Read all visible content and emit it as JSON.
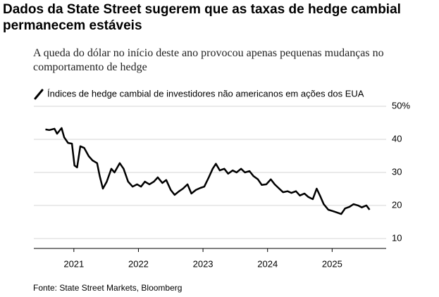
{
  "chart_data": {
    "type": "line",
    "title": "Dados da State Street sugerem que as taxas de hedge cambial permanecem estáveis",
    "subtitle": "A queda do dólar no início deste ano provocou apenas pequenas mudanças no comportamento de hedge",
    "source": "Fonte: State Street Markets, Bloomberg",
    "x": [
      2020.56,
      2020.62,
      2020.7,
      2020.74,
      2020.81,
      2020.85,
      2020.91,
      2020.97,
      2021.01,
      2021.05,
      2021.1,
      2021.16,
      2021.23,
      2021.29,
      2021.36,
      2021.4,
      2021.45,
      2021.51,
      2021.58,
      2021.63,
      2021.71,
      2021.77,
      2021.84,
      2021.91,
      2021.98,
      2022.04,
      2022.1,
      2022.17,
      2022.24,
      2022.3,
      2022.37,
      2022.43,
      2022.5,
      2022.56,
      2022.63,
      2022.69,
      2022.76,
      2022.82,
      2022.89,
      2022.96,
      2023.02,
      2023.09,
      2023.15,
      2023.2,
      2023.26,
      2023.33,
      2023.39,
      2023.46,
      2023.52,
      2023.59,
      2023.65,
      2023.72,
      2023.78,
      2023.85,
      2023.91,
      2023.98,
      2024.05,
      2024.11,
      2024.18,
      2024.24,
      2024.31,
      2024.37,
      2024.44,
      2024.5,
      2024.57,
      2024.63,
      2024.7,
      2024.76,
      2024.82,
      2024.87,
      2024.94,
      2025.01,
      2025.07,
      2025.14,
      2025.2,
      2025.27,
      2025.33,
      2025.4,
      2025.46,
      2025.53,
      2025.58
    ],
    "series": [
      {
        "name": "Índices de hedge cambial de investidores não americanos em ações dos EUA",
        "color": "#000000",
        "values": [
          43.0,
          42.8,
          43.2,
          41.7,
          43.4,
          40.6,
          38.9,
          38.7,
          32.1,
          31.5,
          37.9,
          37.4,
          34.9,
          33.6,
          32.8,
          28.9,
          25.1,
          27.2,
          31.1,
          30.0,
          32.8,
          31.1,
          27.2,
          25.7,
          26.4,
          25.7,
          27.2,
          26.4,
          27.2,
          28.5,
          26.8,
          27.7,
          24.7,
          23.2,
          24.3,
          25.1,
          26.4,
          23.6,
          24.7,
          25.3,
          25.7,
          28.5,
          31.1,
          32.6,
          30.6,
          31.1,
          29.6,
          30.6,
          30.0,
          31.1,
          30.0,
          30.4,
          28.9,
          27.9,
          26.2,
          26.4,
          27.9,
          26.4,
          25.1,
          24.0,
          24.3,
          23.8,
          24.3,
          23.0,
          23.6,
          22.6,
          21.9,
          25.1,
          22.6,
          20.4,
          18.7,
          18.3,
          17.9,
          17.4,
          19.1,
          19.6,
          20.4,
          20.0,
          19.4,
          20.0,
          18.7
        ]
      }
    ],
    "xlim": [
      2020.38,
      2025.64
    ],
    "xticks": [
      2021,
      2022,
      2023,
      2024,
      2025
    ],
    "ylim": [
      7,
      50
    ],
    "yticks": [
      10,
      20,
      30,
      40,
      {
        "value": 50,
        "label": "50%"
      }
    ],
    "grid": true
  }
}
